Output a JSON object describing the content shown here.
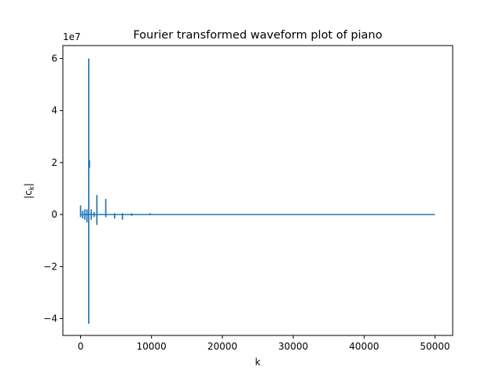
{
  "chart_data": {
    "type": "line",
    "title": "Fourier transformed waveform plot of piano",
    "xlabel": "k",
    "ylabel_base": "|c",
    "ylabel_sub": "k",
    "ylabel_close": "|",
    "y_offset_label": "1e7",
    "y_scale": 10000000,
    "xlim": [
      -2500,
      52500
    ],
    "ylim": [
      -4.65,
      6.5
    ],
    "x_ticks": [
      0,
      10000,
      20000,
      30000,
      40000,
      50000
    ],
    "x_tick_labels": [
      "0",
      "10000",
      "20000",
      "30000",
      "40000",
      "50000"
    ],
    "y_ticks": [
      -4,
      -2,
      0,
      2,
      4,
      6
    ],
    "y_tick_labels": [
      "−4",
      "−2",
      "0",
      "2",
      "4",
      "6"
    ],
    "grid": false,
    "line_color": "#1f77b4",
    "series": [
      {
        "baseline": {
          "x": [
            0,
            50000
          ],
          "y": [
            0,
            0
          ]
        },
        "spikes": [
          {
            "x": 0,
            "lo": -0.1,
            "hi": 0.35
          },
          {
            "x": 300,
            "lo": -0.15,
            "hi": 0.15
          },
          {
            "x": 600,
            "lo": -0.2,
            "hi": 0.2
          },
          {
            "x": 900,
            "lo": -0.3,
            "hi": 0.2
          },
          {
            "x": 1150,
            "lo": -4.2,
            "hi": 6.0
          },
          {
            "x": 1250,
            "lo": 1.8,
            "hi": 2.1
          },
          {
            "x": 1500,
            "lo": -0.2,
            "hi": 0.2
          },
          {
            "x": 1900,
            "lo": -0.1,
            "hi": 0.1
          },
          {
            "x": 2300,
            "lo": -0.4,
            "hi": 0.75
          },
          {
            "x": 3550,
            "lo": -0.1,
            "hi": 0.6
          },
          {
            "x": 4800,
            "lo": -0.15,
            "hi": 0.05
          },
          {
            "x": 5900,
            "lo": -0.2,
            "hi": 0.05
          },
          {
            "x": 7200,
            "lo": -0.05,
            "hi": 0.05
          },
          {
            "x": 9800,
            "lo": -0.02,
            "hi": 0.05
          }
        ]
      }
    ]
  }
}
